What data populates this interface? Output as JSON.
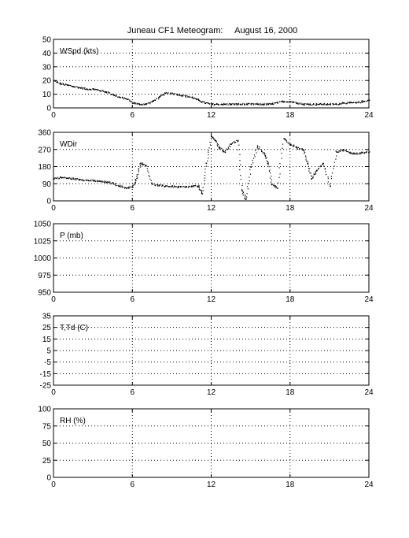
{
  "title": "Juneau CF1 Meteogram:     August 16, 2000",
  "chart_data": [
    {
      "type": "scatter",
      "label": "WSpd (kts)",
      "xlim": [
        0,
        24
      ],
      "ylim": [
        0,
        50
      ],
      "xticks": [
        "0",
        "6",
        "12",
        "18",
        "24"
      ],
      "yticks": [
        "0",
        "10",
        "20",
        "30",
        "40",
        "50"
      ],
      "grid": true,
      "series": [
        {
          "color": "#000000",
          "x": [
            0,
            0.5,
            1,
            1.5,
            2,
            2.5,
            3,
            3.5,
            4,
            4.5,
            5,
            5.5,
            6,
            6.5,
            7,
            7.5,
            8,
            8.5,
            9,
            9.5,
            10,
            10.5,
            11,
            11.5,
            12,
            12.5,
            13,
            13.5,
            14,
            14.5,
            15,
            15.5,
            16,
            16.5,
            17,
            17.5,
            18,
            18.5,
            19,
            19.5,
            20,
            20.5,
            21,
            21.5,
            22,
            22.5,
            23,
            23.5,
            24
          ],
          "y": [
            20,
            18,
            17,
            16,
            15,
            14,
            14,
            13,
            12,
            10,
            8,
            7,
            4,
            3,
            3,
            5,
            8,
            11,
            11,
            10,
            9,
            8,
            6,
            4,
            3,
            3,
            3,
            3,
            3,
            3,
            3,
            3,
            3,
            3,
            4,
            5,
            5,
            4,
            3,
            3,
            3,
            3,
            3,
            3,
            4,
            4,
            4,
            5,
            6
          ]
        }
      ]
    },
    {
      "type": "scatter",
      "label": "WDir",
      "xlim": [
        0,
        24
      ],
      "ylim": [
        0,
        360
      ],
      "xticks": [
        "0",
        "6",
        "12",
        "18",
        "24"
      ],
      "yticks": [
        "0",
        "90",
        "180",
        "270",
        "360"
      ],
      "grid": true,
      "series": [
        {
          "color": "#000000",
          "x": [
            0,
            0.5,
            1,
            1.5,
            2,
            2.5,
            3,
            3.5,
            4,
            4.5,
            5,
            5.5,
            6,
            6.3,
            6.6,
            7,
            7.5,
            8,
            8.5,
            9,
            9.5,
            10,
            10.5,
            11,
            11.3,
            11.6,
            12,
            12.3,
            12.6,
            13,
            13.5,
            14,
            14.3,
            14.6,
            15,
            15.5,
            16,
            16.3,
            16.6,
            17,
            17.5,
            18,
            18.5,
            19,
            19.3,
            19.6,
            20,
            20.5,
            21,
            21.5,
            22,
            22.5,
            23,
            23.5,
            24
          ],
          "y": [
            120,
            125,
            122,
            118,
            115,
            110,
            108,
            105,
            100,
            95,
            80,
            70,
            75,
            120,
            200,
            190,
            90,
            82,
            80,
            78,
            75,
            75,
            78,
            80,
            40,
            200,
            340,
            320,
            280,
            260,
            300,
            320,
            60,
            10,
            180,
            290,
            250,
            200,
            90,
            70,
            330,
            300,
            280,
            270,
            200,
            120,
            160,
            200,
            80,
            260,
            270,
            255,
            250,
            255,
            260
          ]
        }
      ]
    },
    {
      "type": "scatter",
      "label": "P (mb)",
      "xlim": [
        0,
        24
      ],
      "ylim": [
        950,
        1050
      ],
      "xticks": [
        "0",
        "6",
        "12",
        "18",
        "24"
      ],
      "yticks": [
        "950",
        "975",
        "1000",
        "1025",
        "1050"
      ],
      "grid": true,
      "series": []
    },
    {
      "type": "scatter",
      "label": "T,Td (C)",
      "xlim": [
        0,
        24
      ],
      "ylim": [
        -25,
        35
      ],
      "xticks": [
        "0",
        "6",
        "12",
        "18",
        "24"
      ],
      "yticks": [
        "-25",
        "-15",
        "-5",
        "5",
        "15",
        "25",
        "35"
      ],
      "grid": true,
      "series": []
    },
    {
      "type": "scatter",
      "label": "RH (%)",
      "xlim": [
        0,
        24
      ],
      "ylim": [
        0,
        100
      ],
      "xticks": [
        "0",
        "6",
        "12",
        "18",
        "24"
      ],
      "yticks": [
        "0",
        "25",
        "50",
        "75",
        "100"
      ],
      "grid": true,
      "series": []
    }
  ]
}
